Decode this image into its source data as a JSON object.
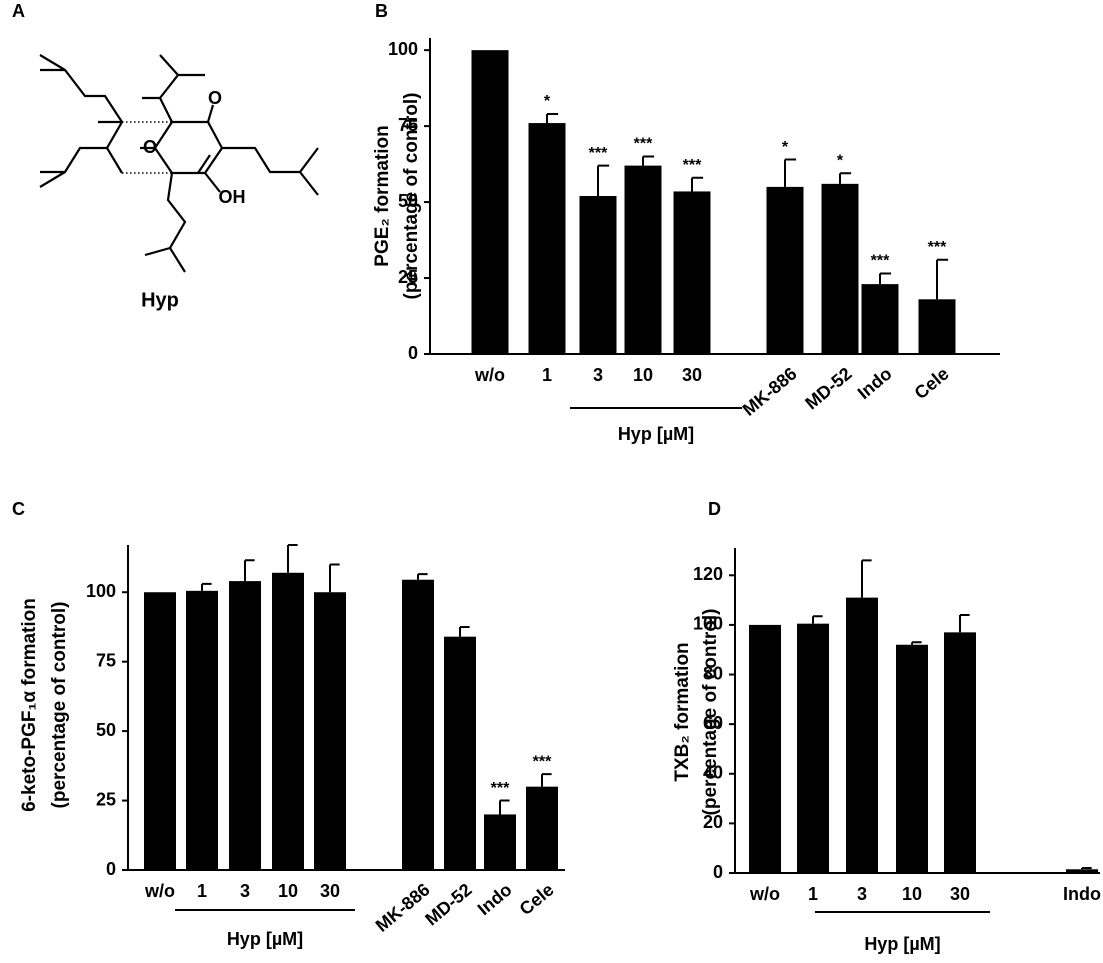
{
  "structure": {
    "panel_label": "A",
    "name": "Hyp",
    "atoms": [
      "O",
      "O",
      "OH"
    ]
  },
  "chart_data": [
    {
      "type": "bar",
      "panel_label": "B",
      "ylabel": [
        "PGE₂ formation",
        "(percentage of control)"
      ],
      "categories": [
        "w/o",
        "1",
        "3",
        "10",
        "30",
        "MK-886",
        "MD-52",
        "Indo",
        "Cele"
      ],
      "values": [
        100,
        76,
        52,
        62,
        53.5,
        55,
        56,
        23,
        18
      ],
      "errors": [
        null,
        3,
        10,
        3,
        4.5,
        9,
        3.5,
        3.5,
        13
      ],
      "annotations": [
        null,
        "*",
        "***",
        "***",
        "***",
        "*",
        "*",
        "***",
        "***"
      ],
      "group_label": "Hyp [µM]",
      "color": "#000000",
      "ylim": [
        0,
        104
      ],
      "yticks": [
        0,
        25,
        50,
        75,
        100
      ]
    },
    {
      "type": "bar",
      "panel_label": "C",
      "ylabel": [
        "6-keto-PGF₁α formation",
        "(percentage of control)"
      ],
      "categories": [
        "w/o",
        "1",
        "3",
        "10",
        "30",
        "MK-886",
        "MD-52",
        "Indo",
        "Cele"
      ],
      "values": [
        100,
        100.5,
        104,
        107,
        100,
        104.5,
        84,
        20,
        30
      ],
      "errors": [
        null,
        2.5,
        7.5,
        10,
        10,
        2,
        3.5,
        5,
        4.5
      ],
      "annotations": [
        null,
        null,
        null,
        null,
        null,
        null,
        null,
        "***",
        "***"
      ],
      "group_label": "Hyp [µM]",
      "color": "#000000",
      "ylim": [
        0,
        117
      ],
      "yticks": [
        0,
        25,
        50,
        75,
        100
      ]
    },
    {
      "type": "bar",
      "panel_label": "D",
      "ylabel": [
        "TXB₂ formation",
        "(percentage of control)"
      ],
      "categories": [
        "w/o",
        "1",
        "3",
        "10",
        "30",
        "Indo"
      ],
      "values": [
        100,
        100.5,
        111,
        92,
        97,
        1.5
      ],
      "errors": [
        null,
        3,
        15,
        1,
        7,
        0.5
      ],
      "group_label": "Hyp [µM]",
      "color": "#000000",
      "ylim": [
        0,
        131
      ],
      "yticks": [
        0,
        20,
        40,
        60,
        80,
        100,
        120
      ]
    }
  ]
}
